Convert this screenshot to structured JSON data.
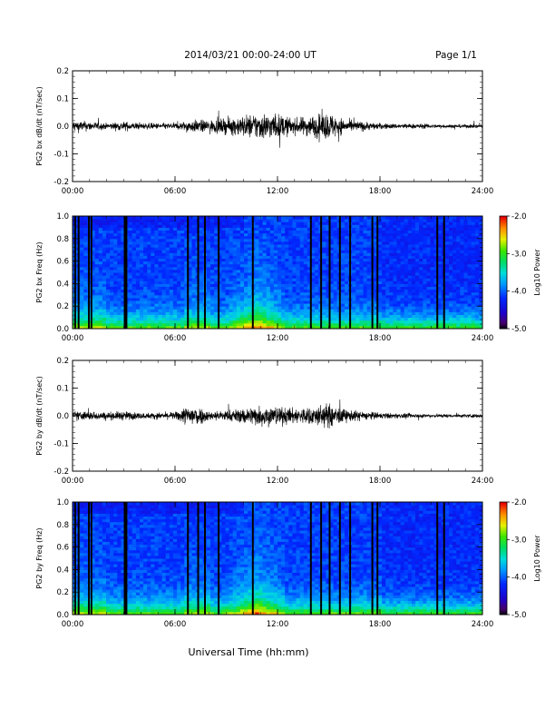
{
  "header": {
    "title": "2014/03/21  00:00-24:00 UT",
    "page": "Page 1/1"
  },
  "footer": {
    "xlabel": "Universal Time (hh:mm)"
  },
  "colorbar": {
    "label": "Log10 Power",
    "ticks": [
      "-2.0",
      "-3.0",
      "-4.0",
      "-5.0"
    ]
  },
  "chart_data": [
    {
      "type": "line",
      "ylabel": "PG2 bx dB/dt (nT/sec)",
      "xlim": [
        0,
        24
      ],
      "ylim": [
        -0.2,
        0.2
      ],
      "x_ticks": [
        "00:00",
        "06:00",
        "12:00",
        "18:00",
        "24:00"
      ],
      "y_ticks": [
        "0.2",
        "0.1",
        "0.0",
        "-0.1",
        "-0.2"
      ],
      "series": [
        {
          "x": [
            0,
            1,
            2,
            3,
            4,
            5,
            6,
            7,
            8,
            9,
            10,
            11,
            12,
            13,
            14,
            15,
            16,
            17,
            18,
            19,
            20,
            21,
            22,
            23,
            24
          ],
          "envelope": [
            0.02,
            0.015,
            0.01,
            0.015,
            0.01,
            0.01,
            0.01,
            0.02,
            0.02,
            0.025,
            0.035,
            0.045,
            0.04,
            0.025,
            0.035,
            0.045,
            0.02,
            0.015,
            0.01,
            0.008,
            0.008,
            0.007,
            0.006,
            0.006,
            0.006
          ]
        }
      ]
    },
    {
      "type": "heatmap",
      "ylabel": "PG2 bx Freq (Hz)",
      "xlim": [
        0,
        24
      ],
      "ylim": [
        0,
        1.0
      ],
      "zlim": [
        -5.0,
        -2.0
      ],
      "x_ticks": [
        "00:00",
        "06:00",
        "12:00",
        "18:00",
        "24:00"
      ],
      "y_ticks": [
        "1.0",
        "0.8",
        "0.6",
        "0.4",
        "0.2",
        "0.0"
      ],
      "gap_times": [
        0.1,
        0.3,
        0.9,
        1.05,
        3.0,
        3.1,
        6.7,
        7.3,
        7.7,
        8.5,
        10.5,
        13.9,
        14.5,
        15.0,
        15.6,
        16.2,
        17.5,
        17.8,
        21.3,
        21.7
      ]
    },
    {
      "type": "line",
      "ylabel": "PG2 by dB/dt (nT/sec)",
      "xlim": [
        0,
        24
      ],
      "ylim": [
        -0.2,
        0.2
      ],
      "x_ticks": [
        "00:00",
        "06:00",
        "12:00",
        "18:00",
        "24:00"
      ],
      "y_ticks": [
        "0.2",
        "0.1",
        "0.0",
        "-0.1",
        "-0.2"
      ],
      "series": [
        {
          "x": [
            0,
            1,
            2,
            3,
            4,
            5,
            6,
            7,
            8,
            9,
            10,
            11,
            12,
            13,
            14,
            15,
            16,
            17,
            18,
            19,
            20,
            21,
            22,
            23,
            24
          ],
          "envelope": [
            0.015,
            0.015,
            0.012,
            0.015,
            0.01,
            0.01,
            0.012,
            0.04,
            0.015,
            0.018,
            0.025,
            0.035,
            0.03,
            0.025,
            0.03,
            0.04,
            0.02,
            0.015,
            0.01,
            0.008,
            0.007,
            0.006,
            0.006,
            0.006,
            0.006
          ]
        }
      ]
    },
    {
      "type": "heatmap",
      "ylabel": "PG2 by Freq (Hz)",
      "xlim": [
        0,
        24
      ],
      "ylim": [
        0,
        1.0
      ],
      "zlim": [
        -5.0,
        -2.0
      ],
      "x_ticks": [
        "00:00",
        "06:00",
        "12:00",
        "18:00",
        "24:00"
      ],
      "y_ticks": [
        "1.0",
        "0.8",
        "0.6",
        "0.4",
        "0.2",
        "0.0"
      ],
      "gap_times": [
        0.1,
        0.3,
        0.9,
        1.05,
        3.0,
        3.1,
        6.7,
        7.3,
        7.7,
        8.5,
        10.5,
        13.9,
        14.5,
        15.0,
        15.6,
        16.2,
        17.5,
        17.8,
        21.3,
        21.7
      ]
    }
  ]
}
